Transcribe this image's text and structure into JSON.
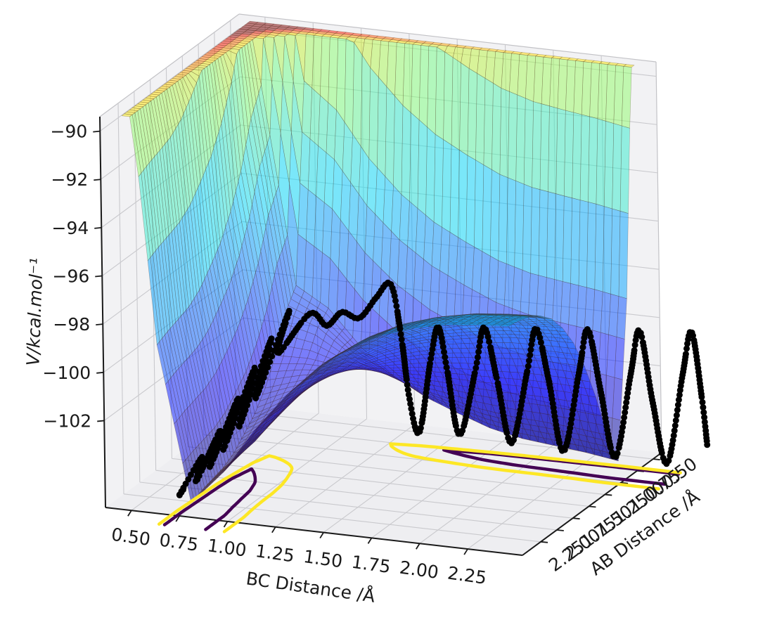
{
  "figure": {
    "background": "#ffffff"
  },
  "axes": {
    "bc": {
      "label": "BC Distance /Å",
      "tick_labels": [
        "0.50",
        "0.75",
        "1.00",
        "1.25",
        "1.50",
        "1.75",
        "2.00",
        "2.25"
      ],
      "tick_values": [
        0.5,
        0.75,
        1.0,
        1.25,
        1.5,
        1.75,
        2.0,
        2.25
      ],
      "range": [
        0.365,
        2.535
      ]
    },
    "ab": {
      "label": "AB Distance /Å",
      "tick_labels": [
        "0.50",
        "0.75",
        "1.00",
        "1.25",
        "1.50",
        "1.75",
        "2.00",
        "2.25"
      ],
      "tick_values": [
        0.5,
        0.75,
        1.0,
        1.25,
        1.5,
        1.75,
        2.0,
        2.25
      ],
      "range": [
        0.365,
        2.535
      ]
    },
    "v": {
      "label": "V/kcal.mol⁻¹",
      "tick_labels": [
        "−90",
        "−92",
        "−94",
        "−96",
        "−98",
        "−100",
        "−102"
      ],
      "tick_values": [
        -90,
        -92,
        -94,
        -96,
        -98,
        -100,
        -102
      ],
      "range": [
        -105.6,
        -89.4
      ]
    }
  },
  "chart_data": {
    "type": "surface",
    "title": "",
    "colormap": "jet",
    "color_range": [
      -105.4,
      -76
    ],
    "surface_opacity": 0.5,
    "clip_top": -89.45,
    "surface": {
      "domain": [
        0.45,
        2.45
      ],
      "grid_r": [
        0.45,
        0.6167,
        0.7833,
        0.95,
        1.1167,
        1.2833,
        1.45,
        1.6167,
        1.7833,
        1.95,
        2.1167,
        2.2833,
        2.45
      ],
      "channel_profile": [
        -85.0,
        -98.8,
        -105.2,
        -103.8,
        -101.9,
        -100.3,
        -99.0,
        -98.05,
        -97.35,
        -96.9,
        -96.6,
        -96.45,
        -96.35
      ],
      "bond_order": [
        1.22,
        1.12,
        1.0,
        0.85,
        0.62,
        0.44,
        0.3,
        0.2,
        0.12,
        0.07,
        0.04,
        0.02,
        0.0
      ],
      "asymptote": -96.35,
      "coupling": 14.6
    },
    "floor_contours": {
      "colormap": "viridis",
      "contour_domain": [
        0.45,
        2.75
      ],
      "levels": [
        {
          "value": -103.7,
          "color": "#440154"
        },
        {
          "value": -102.6,
          "color": "#fde725"
        }
      ]
    },
    "trajectory": {
      "color": "#000000",
      "marker": "dot",
      "points": [
        [
          0.8,
          2.62,
          -104.3
        ],
        [
          0.74,
          2.5,
          -104.8
        ],
        [
          0.82,
          2.38,
          -103.4
        ],
        [
          0.75,
          2.27,
          -104.7
        ],
        [
          0.84,
          2.15,
          -102.7
        ],
        [
          0.75,
          2.05,
          -104.5
        ],
        [
          0.86,
          1.93,
          -101.8
        ],
        [
          0.75,
          1.84,
          -104.2
        ],
        [
          0.88,
          1.72,
          -100.9
        ],
        [
          0.76,
          1.63,
          -103.7
        ],
        [
          0.9,
          1.52,
          -100.1
        ],
        [
          0.78,
          1.43,
          -102.9
        ],
        [
          0.93,
          1.33,
          -99.3
        ],
        [
          0.84,
          1.25,
          -101.3
        ],
        [
          0.98,
          1.16,
          -99.7
        ],
        [
          1.04,
          1.08,
          -100.3
        ],
        [
          1.1,
          1.02,
          -99.8
        ],
        [
          1.17,
          0.96,
          -100.1
        ],
        [
          1.24,
          0.9,
          -99.3
        ],
        [
          1.3,
          0.85,
          -98.8
        ],
        [
          1.34,
          0.82,
          -101.0
        ],
        [
          1.37,
          0.8,
          -103.5
        ],
        [
          1.41,
          0.77,
          -105.0
        ],
        [
          1.47,
          0.76,
          -102.0
        ],
        [
          1.52,
          0.78,
          -100.5
        ],
        [
          1.57,
          0.8,
          -102.2
        ],
        [
          1.62,
          0.77,
          -104.9
        ],
        [
          1.7,
          0.75,
          -102.2
        ],
        [
          1.76,
          0.78,
          -100.3
        ],
        [
          1.83,
          0.8,
          -102.4
        ],
        [
          1.89,
          0.77,
          -105.0
        ],
        [
          1.97,
          0.75,
          -102.0
        ],
        [
          2.03,
          0.78,
          -100.1
        ],
        [
          2.1,
          0.8,
          -102.2
        ],
        [
          2.16,
          0.77,
          -105.1
        ],
        [
          2.24,
          0.75,
          -101.8
        ],
        [
          2.3,
          0.78,
          -99.9
        ],
        [
          2.37,
          0.8,
          -102.4
        ],
        [
          2.43,
          0.77,
          -105.1
        ],
        [
          2.51,
          0.75,
          -101.6
        ],
        [
          2.57,
          0.78,
          -99.7
        ],
        [
          2.64,
          0.8,
          -102.6
        ],
        [
          2.7,
          0.77,
          -105.1
        ],
        [
          2.78,
          0.75,
          -101.4
        ],
        [
          2.84,
          0.78,
          -99.5
        ],
        [
          2.9,
          0.81,
          -102.2
        ],
        [
          2.93,
          0.83,
          -104.0
        ]
      ]
    }
  }
}
